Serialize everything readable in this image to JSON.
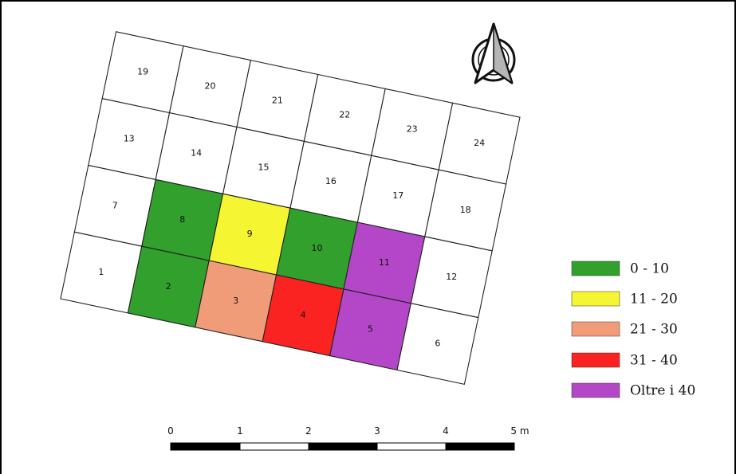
{
  "grid": {
    "cells": [
      {
        "id": "1",
        "fill": "#ffffff"
      },
      {
        "id": "2",
        "fill": "#31a02c"
      },
      {
        "id": "3",
        "fill": "#f19c78"
      },
      {
        "id": "4",
        "fill": "#fb2222"
      },
      {
        "id": "5",
        "fill": "#b447c8"
      },
      {
        "id": "6",
        "fill": "#ffffff"
      },
      {
        "id": "7",
        "fill": "#ffffff"
      },
      {
        "id": "8",
        "fill": "#31a02c"
      },
      {
        "id": "9",
        "fill": "#f5f532"
      },
      {
        "id": "10",
        "fill": "#31a02c"
      },
      {
        "id": "11",
        "fill": "#b447c8"
      },
      {
        "id": "12",
        "fill": "#ffffff"
      },
      {
        "id": "13",
        "fill": "#ffffff"
      },
      {
        "id": "14",
        "fill": "#ffffff"
      },
      {
        "id": "15",
        "fill": "#ffffff"
      },
      {
        "id": "16",
        "fill": "#ffffff"
      },
      {
        "id": "17",
        "fill": "#ffffff"
      },
      {
        "id": "18",
        "fill": "#ffffff"
      },
      {
        "id": "19",
        "fill": "#ffffff"
      },
      {
        "id": "20",
        "fill": "#ffffff"
      },
      {
        "id": "21",
        "fill": "#ffffff"
      },
      {
        "id": "22",
        "fill": "#ffffff"
      },
      {
        "id": "23",
        "fill": "#ffffff"
      },
      {
        "id": "24",
        "fill": "#ffffff"
      }
    ]
  },
  "legend": [
    {
      "label": "0 - 10",
      "color": "#31a02c"
    },
    {
      "label": "11 - 20",
      "color": "#f5f532"
    },
    {
      "label": "21 - 30",
      "color": "#f19c78"
    },
    {
      "label": "31 - 40",
      "color": "#fb2222"
    },
    {
      "label": "Oltre i 40",
      "color": "#b447c8"
    }
  ],
  "scale_bar": {
    "ticks": [
      "0",
      "1",
      "2",
      "3",
      "4",
      "5 m"
    ]
  },
  "north_arrow": {
    "icon": "north-arrow-icon"
  }
}
